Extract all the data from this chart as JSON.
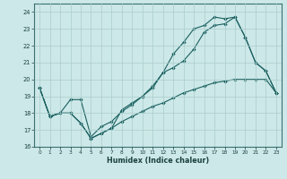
{
  "xlabel": "Humidex (Indice chaleur)",
  "bg_color": "#cde8e8",
  "grid_color": "#aacccc",
  "line_color": "#1a6060",
  "xlim": [
    -0.5,
    23.5
  ],
  "ylim": [
    16,
    24.5
  ],
  "yticks": [
    16,
    17,
    18,
    19,
    20,
    21,
    22,
    23,
    24
  ],
  "xticks": [
    0,
    1,
    2,
    3,
    4,
    5,
    6,
    7,
    8,
    9,
    10,
    11,
    12,
    13,
    14,
    15,
    16,
    17,
    18,
    19,
    20,
    21,
    22,
    23
  ],
  "line1_x": [
    0,
    1,
    2,
    3,
    4,
    5,
    6,
    7,
    8,
    9,
    10,
    11,
    12,
    13,
    14,
    15,
    16,
    17,
    18,
    19,
    20,
    21,
    22,
    23
  ],
  "line1_y": [
    19.5,
    17.8,
    18.0,
    18.0,
    17.4,
    16.5,
    16.8,
    17.1,
    17.5,
    17.8,
    18.1,
    18.4,
    18.6,
    18.9,
    19.2,
    19.4,
    19.6,
    19.8,
    19.9,
    20.0,
    20.0,
    20.0,
    20.0,
    19.2
  ],
  "line2_x": [
    0,
    1,
    2,
    3,
    4,
    5,
    6,
    7,
    8,
    9,
    10,
    11,
    12,
    13,
    14,
    15,
    16,
    17,
    18,
    19,
    20,
    21,
    22,
    23
  ],
  "line2_y": [
    19.5,
    17.8,
    18.0,
    18.8,
    18.8,
    16.6,
    17.2,
    17.5,
    18.1,
    18.5,
    19.0,
    19.5,
    20.4,
    20.7,
    21.1,
    21.8,
    22.8,
    23.2,
    23.3,
    23.7,
    22.5,
    21.0,
    20.5,
    19.2
  ],
  "line3_x": [
    0,
    1,
    2,
    3,
    4,
    5,
    6,
    7,
    8,
    9,
    10,
    11,
    12,
    13,
    14,
    15,
    16,
    17,
    18,
    19,
    20,
    21,
    22,
    23
  ],
  "line3_y": [
    19.5,
    17.8,
    18.0,
    18.0,
    17.4,
    16.5,
    16.8,
    17.1,
    18.2,
    18.6,
    19.0,
    19.6,
    20.4,
    21.5,
    22.2,
    23.0,
    23.2,
    23.7,
    23.6,
    23.7,
    22.5,
    21.0,
    20.5,
    19.2
  ]
}
